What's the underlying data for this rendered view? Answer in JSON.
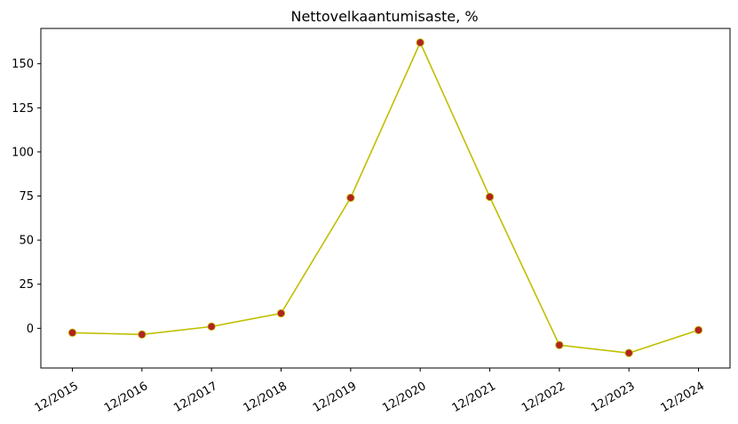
{
  "chart_data": {
    "type": "line",
    "title": "Nettovelkaantumisaste, %",
    "xlabel": "",
    "ylabel": "",
    "categories": [
      "12/2015",
      "12/2016",
      "12/2017",
      "12/2018",
      "12/2019",
      "12/2020",
      "12/2021",
      "12/2022",
      "12/2023",
      "12/2024"
    ],
    "values": [
      -2.5,
      -3.5,
      1.0,
      8.5,
      74.0,
      162.0,
      74.5,
      -9.5,
      -14.0,
      -1.0
    ],
    "yticks": [
      0,
      25,
      50,
      75,
      100,
      125,
      150
    ],
    "ylim": [
      -22.5,
      170
    ],
    "grid": false,
    "line_color": "#bfbf00",
    "marker_color": "#b22222",
    "marker_edge_color": "#bfbf00"
  }
}
